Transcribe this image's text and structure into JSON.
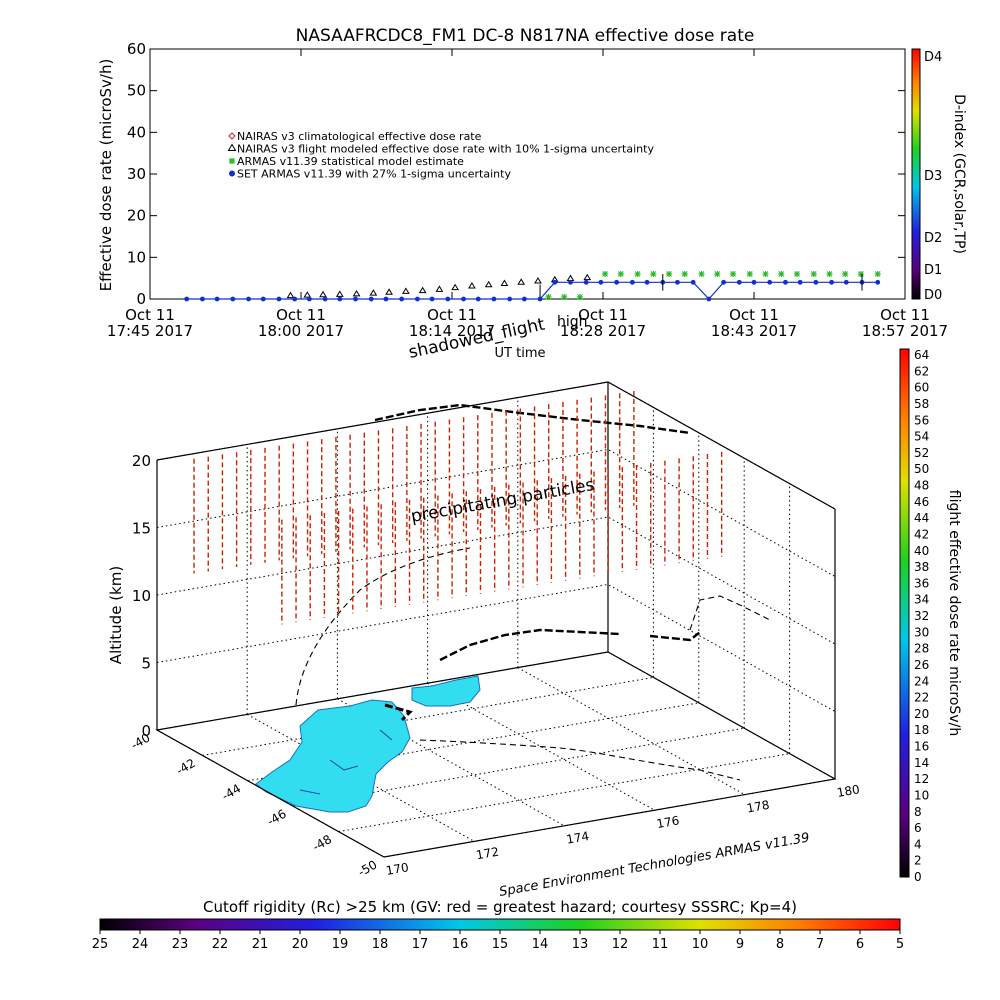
{
  "title": "NASAAFRCDC8_FM1 DC-8    N817NA effective dose rate",
  "top_chart": {
    "ylabel": "Effective dose rate (microSv/h)",
    "y_ticks": [
      "0",
      "10",
      "20",
      "30",
      "40",
      "50",
      "60"
    ],
    "x_ticks": [
      {
        "line1": "Oct 11",
        "line2": "17:45 2017"
      },
      {
        "line1": "Oct 11",
        "line2": "18:00 2017"
      },
      {
        "line1": "Oct 11",
        "line2": "18:14 2017"
      },
      {
        "line1": "Oct 11",
        "line2": "18:28 2017"
      },
      {
        "line1": "Oct 11",
        "line2": "18:43 2017"
      },
      {
        "line1": "Oct 11",
        "line2": "18:57 2017"
      }
    ],
    "xlabel": "UT time",
    "shadowed_label": "shadowed_flight",
    "overlap_label": "high",
    "right_axis_label": "D-index (GCR,solar,TP)",
    "right_axis_ticks": [
      "D0",
      "D1",
      "D2",
      "D3",
      "D4"
    ],
    "legend": [
      {
        "label": "NAIRAS v3 climatological effective dose rate",
        "color": "#d02020",
        "symbol": "diamond"
      },
      {
        "label": "NAIRAS v3 flight modeled effective dose rate with 10% 1-sigma uncertainty",
        "color": "#000000",
        "symbol": "triangle"
      },
      {
        "label": "ARMAS v11.39 statistical model estimate",
        "color": "#22bb22",
        "symbol": "asterisk"
      },
      {
        "label": "SET ARMAS v11.39 with 27% 1-sigma uncertainty",
        "color": "#1030d0",
        "symbol": "circle"
      }
    ]
  },
  "chart_data": [
    {
      "type": "scatter",
      "title": "NASAAFRCDC8_FM1 DC-8    N817NA effective dose rate",
      "xlabel": "UT time",
      "ylabel": "Effective dose rate (microSv/h)",
      "x_units": "minutes after Oct 11 2017 17:45 UT",
      "xlim": [
        0,
        72
      ],
      "ylim": [
        0,
        60
      ],
      "grid": false,
      "legend_position": "upper-left",
      "series": [
        {
          "name": "NAIRAS v3 flight modeled effective dose rate with 10% 1-sigma uncertainty",
          "x": [
            13.4,
            15.0,
            16.5,
            18.1,
            19.7,
            21.3,
            22.8,
            24.4,
            26.0,
            27.6,
            29.1,
            30.7,
            32.3,
            33.8,
            35.4,
            37.0,
            38.6,
            40.1,
            41.7
          ],
          "y": [
            0.1,
            0.2,
            0.3,
            0.4,
            0.5,
            0.7,
            0.9,
            1.1,
            1.3,
            1.6,
            2.0,
            2.4,
            2.7,
            3.0,
            3.3,
            3.6,
            3.9,
            4.2,
            4.4
          ]
        },
        {
          "name": "ARMAS v11.39 statistical model estimate",
          "x": [
            38.0,
            39.5,
            41.0,
            43.4,
            44.9,
            46.5,
            48.0,
            49.5,
            51.0,
            52.6,
            54.1,
            55.6,
            57.2,
            58.7,
            60.2,
            61.7,
            63.3,
            64.8,
            66.3,
            67.8,
            69.4
          ],
          "y": [
            0.5,
            0.5,
            0.5,
            6.0,
            6.0,
            6.0,
            6.0,
            6.0,
            6.0,
            6.0,
            6.0,
            6.0,
            6.0,
            6.0,
            6.0,
            6.0,
            6.0,
            6.0,
            6.0,
            6.0,
            6.0
          ]
        },
        {
          "name": "SET ARMAS v11.39 with 27% 1-sigma uncertainty",
          "x": [
            3.5,
            5.0,
            6.4,
            7.9,
            9.4,
            10.8,
            12.3,
            13.8,
            15.2,
            16.7,
            18.1,
            19.6,
            21.1,
            22.5,
            24.0,
            25.5,
            26.9,
            28.4,
            29.9,
            31.3,
            32.8,
            34.3,
            35.7,
            37.2,
            38.6,
            40.1,
            41.6,
            43.0,
            44.5,
            46.0,
            47.4,
            48.9,
            50.3,
            51.8,
            53.3,
            54.7,
            56.2,
            57.6,
            59.1,
            60.6,
            62.0,
            63.5,
            65.0,
            66.4,
            67.9,
            69.4
          ],
          "y": [
            0,
            0,
            0,
            0,
            0,
            0,
            0,
            0,
            0,
            0,
            0,
            0,
            0,
            0,
            0,
            0,
            0,
            0,
            0,
            0,
            0,
            0,
            0,
            0,
            4,
            4,
            4,
            4,
            4,
            4,
            4,
            4,
            4,
            4,
            0,
            4,
            4,
            4,
            4,
            4,
            4,
            4,
            4,
            4,
            4,
            4
          ]
        }
      ]
    },
    {
      "type": "scatter",
      "title": "",
      "xlabel": "",
      "ylabel": "Altitude (km)",
      "zlabel": "flight effective dose rate microSv/h",
      "longitude_ticks": [
        "170",
        "172",
        "174",
        "176",
        "178",
        "180"
      ],
      "latitude_ticks": [
        "-40",
        "-42",
        "-44",
        "-46",
        "-48",
        "-50"
      ],
      "altitude_ticks": [
        "0",
        "5",
        "10",
        "15",
        "20"
      ],
      "zlim": [
        0,
        20
      ],
      "colorbar_ticks": [
        "0",
        "2",
        "4",
        "6",
        "8",
        "10",
        "12",
        "14",
        "16",
        "18",
        "20",
        "22",
        "24",
        "26",
        "28",
        "30",
        "32",
        "34",
        "36",
        "38",
        "40",
        "42",
        "44",
        "46",
        "48",
        "50",
        "52",
        "54",
        "56",
        "58",
        "60",
        "62",
        "64"
      ],
      "annotations": [
        "precipitating particles"
      ],
      "flight_track": {
        "color": "#000000",
        "style": "dashed"
      },
      "dose_points": {
        "color": "#cc2200"
      }
    },
    {
      "type": "heatmap",
      "title": "Cutoff rigidity (Rc) >25 km (GV: red = greatest hazard; courtesy SSSRC; Kp=4)",
      "colorbar_ticks": [
        "25",
        "24",
        "23",
        "22",
        "21",
        "20",
        "19",
        "18",
        "17",
        "16",
        "15",
        "14",
        "13",
        "12",
        "11",
        "10",
        "9",
        "8",
        "7",
        "6",
        "5"
      ]
    }
  ],
  "bottom": {
    "credit": "Space Environment Technologies ARMAS v11.39",
    "rigidity_title": "Cutoff rigidity (Rc) >25 km (GV: red = greatest hazard; courtesy SSSRC; Kp=4)"
  },
  "colors": {
    "colorbar_stops": [
      "#000000",
      "#5a0080",
      "#2020e0",
      "#00c8e8",
      "#20d020",
      "#e0e000",
      "#ff8000",
      "#ff0000"
    ],
    "land": "#33ddf0",
    "dose_points": "#cc2200",
    "flight_track": "#000000"
  }
}
